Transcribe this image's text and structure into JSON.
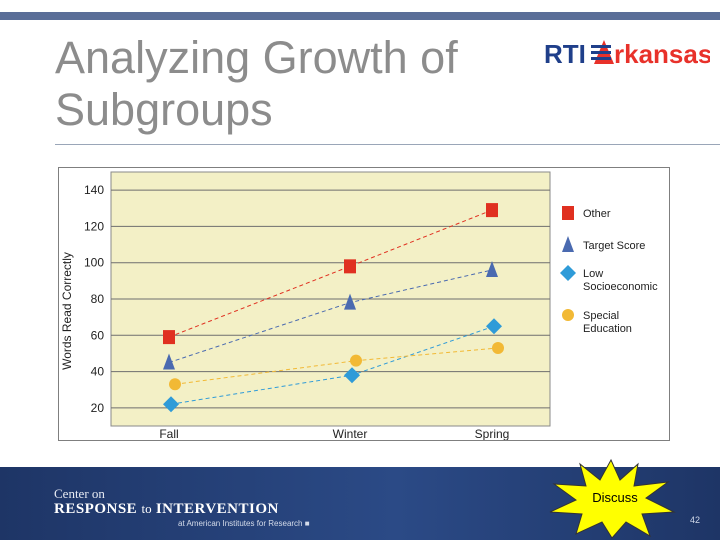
{
  "slide": {
    "title_line1": "Analyzing Growth of",
    "title_line2": "Subgroups",
    "logo_text_a": "RTI",
    "logo_text_b": "rkansas",
    "footer_line1": "Center on",
    "footer_line2_a": "RESPONSE",
    "footer_line2_b": "to",
    "footer_line2_c": "INTERVENTION",
    "footer_line3": "at American Institutes for Research",
    "discuss_label": "Discuss",
    "page_number": "42",
    "colors": {
      "title": "#8c8c8c",
      "top_band": "#5a6e98",
      "footer": "#2b4a86",
      "burst": "#ffff00"
    }
  },
  "chart_data": {
    "type": "line",
    "title": "",
    "xlabel": "",
    "ylabel": "Words Read Correctly",
    "categories": [
      "Fall",
      "Winter",
      "Spring"
    ],
    "ylim": [
      10,
      150
    ],
    "yticks": [
      20,
      40,
      60,
      80,
      100,
      120,
      140
    ],
    "grid": true,
    "plot_background": "#f3f0c6",
    "legend_position": "right",
    "series": [
      {
        "name": "Other",
        "values": [
          59,
          98,
          129
        ],
        "color": "#e03020",
        "marker": "square"
      },
      {
        "name": "Target Score",
        "values": [
          45,
          78,
          96
        ],
        "color": "#4a6ab0",
        "marker": "triangle"
      },
      {
        "name": "Low Socioeconomic",
        "values": [
          22,
          38,
          65
        ],
        "color": "#2f9bd8",
        "marker": "diamond"
      },
      {
        "name": "Special Education",
        "values": [
          33,
          46,
          53
        ],
        "color": "#f2b935",
        "marker": "circle"
      }
    ],
    "legend_lines": [
      [
        "Other"
      ],
      [
        "Target Score"
      ],
      [
        "Low",
        "Socioeconomic"
      ],
      [
        "Special",
        "Education"
      ]
    ]
  }
}
